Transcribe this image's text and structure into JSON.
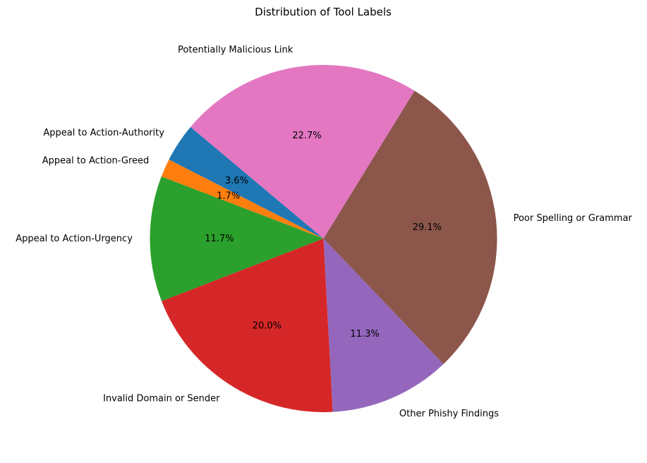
{
  "chart_data": {
    "type": "pie",
    "title": "Distribution of Tool Labels",
    "start_angle_deg": 140,
    "direction": "counterclockwise",
    "slices": [
      {
        "label": "Appeal to Action-Authority",
        "value": 3.6,
        "pct_label": "3.6%",
        "color": "#1f77b4"
      },
      {
        "label": "Appeal to Action-Greed",
        "value": 1.7,
        "pct_label": "1.7%",
        "color": "#ff7f0e"
      },
      {
        "label": "Appeal to Action-Urgency",
        "value": 11.7,
        "pct_label": "11.7%",
        "color": "#2ca02c"
      },
      {
        "label": "Invalid Domain or Sender",
        "value": 20.0,
        "pct_label": "20.0%",
        "color": "#d62728"
      },
      {
        "label": "Other Phishy Findings",
        "value": 11.3,
        "pct_label": "11.3%",
        "color": "#9467bd"
      },
      {
        "label": "Poor Spelling or Grammar",
        "value": 29.1,
        "pct_label": "29.1%",
        "color": "#8c564b"
      },
      {
        "label": "Potentially Malicious Link",
        "value": 22.7,
        "pct_label": "22.7%",
        "color": "#e377c2"
      }
    ]
  }
}
